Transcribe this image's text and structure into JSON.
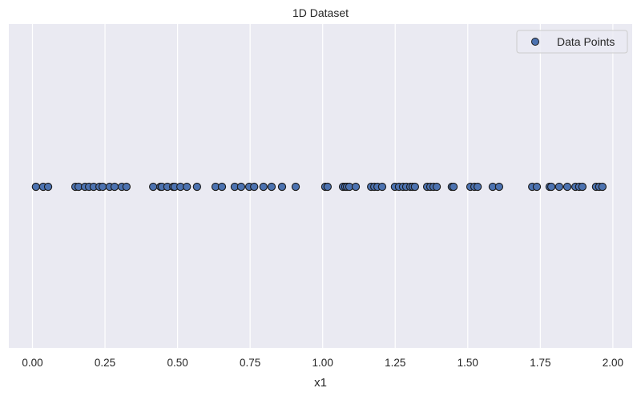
{
  "chart_data": {
    "type": "scatter",
    "title": "1D Dataset",
    "xlabel": "x1",
    "ylabel": "",
    "xlim": [
      -0.08,
      2.07
    ],
    "ylim": [
      -1,
      1
    ],
    "grid": true,
    "grid_axis": "x",
    "legend_position": "upper right",
    "xticks": [
      0.0,
      0.25,
      0.5,
      0.75,
      1.0,
      1.25,
      1.5,
      1.75,
      2.0
    ],
    "xtick_labels": [
      "0.00",
      "0.25",
      "0.50",
      "0.75",
      "1.00",
      "1.25",
      "1.50",
      "1.75",
      "2.00"
    ],
    "yticks": [],
    "series": [
      {
        "name": "Data Points",
        "color": "#4c72b0",
        "edgecolor": "#000000",
        "y_constant": 0,
        "x": [
          0.012,
          0.037,
          0.054,
          0.148,
          0.159,
          0.181,
          0.195,
          0.211,
          0.231,
          0.242,
          0.266,
          0.283,
          0.308,
          0.324,
          0.416,
          0.441,
          0.446,
          0.465,
          0.485,
          0.49,
          0.51,
          0.532,
          0.567,
          0.631,
          0.653,
          0.697,
          0.719,
          0.747,
          0.764,
          0.796,
          0.824,
          0.86,
          0.907,
          1.009,
          1.017,
          1.07,
          1.078,
          1.084,
          1.092,
          1.114,
          1.167,
          1.178,
          1.189,
          1.205,
          1.249,
          1.263,
          1.277,
          1.288,
          1.302,
          1.31,
          1.318,
          1.36,
          1.371,
          1.382,
          1.393,
          1.445,
          1.451,
          1.509,
          1.523,
          1.534,
          1.586,
          1.608,
          1.722,
          1.738,
          1.782,
          1.788,
          1.815,
          1.843,
          1.871,
          1.884,
          1.895,
          1.942,
          1.953,
          1.964
        ]
      }
    ]
  },
  "colors": {
    "axes_background": "#eaeaf2",
    "grid": "#ffffff",
    "marker_face": "#4c72b0",
    "marker_edge": "#1a1a1a",
    "text": "#262626"
  }
}
